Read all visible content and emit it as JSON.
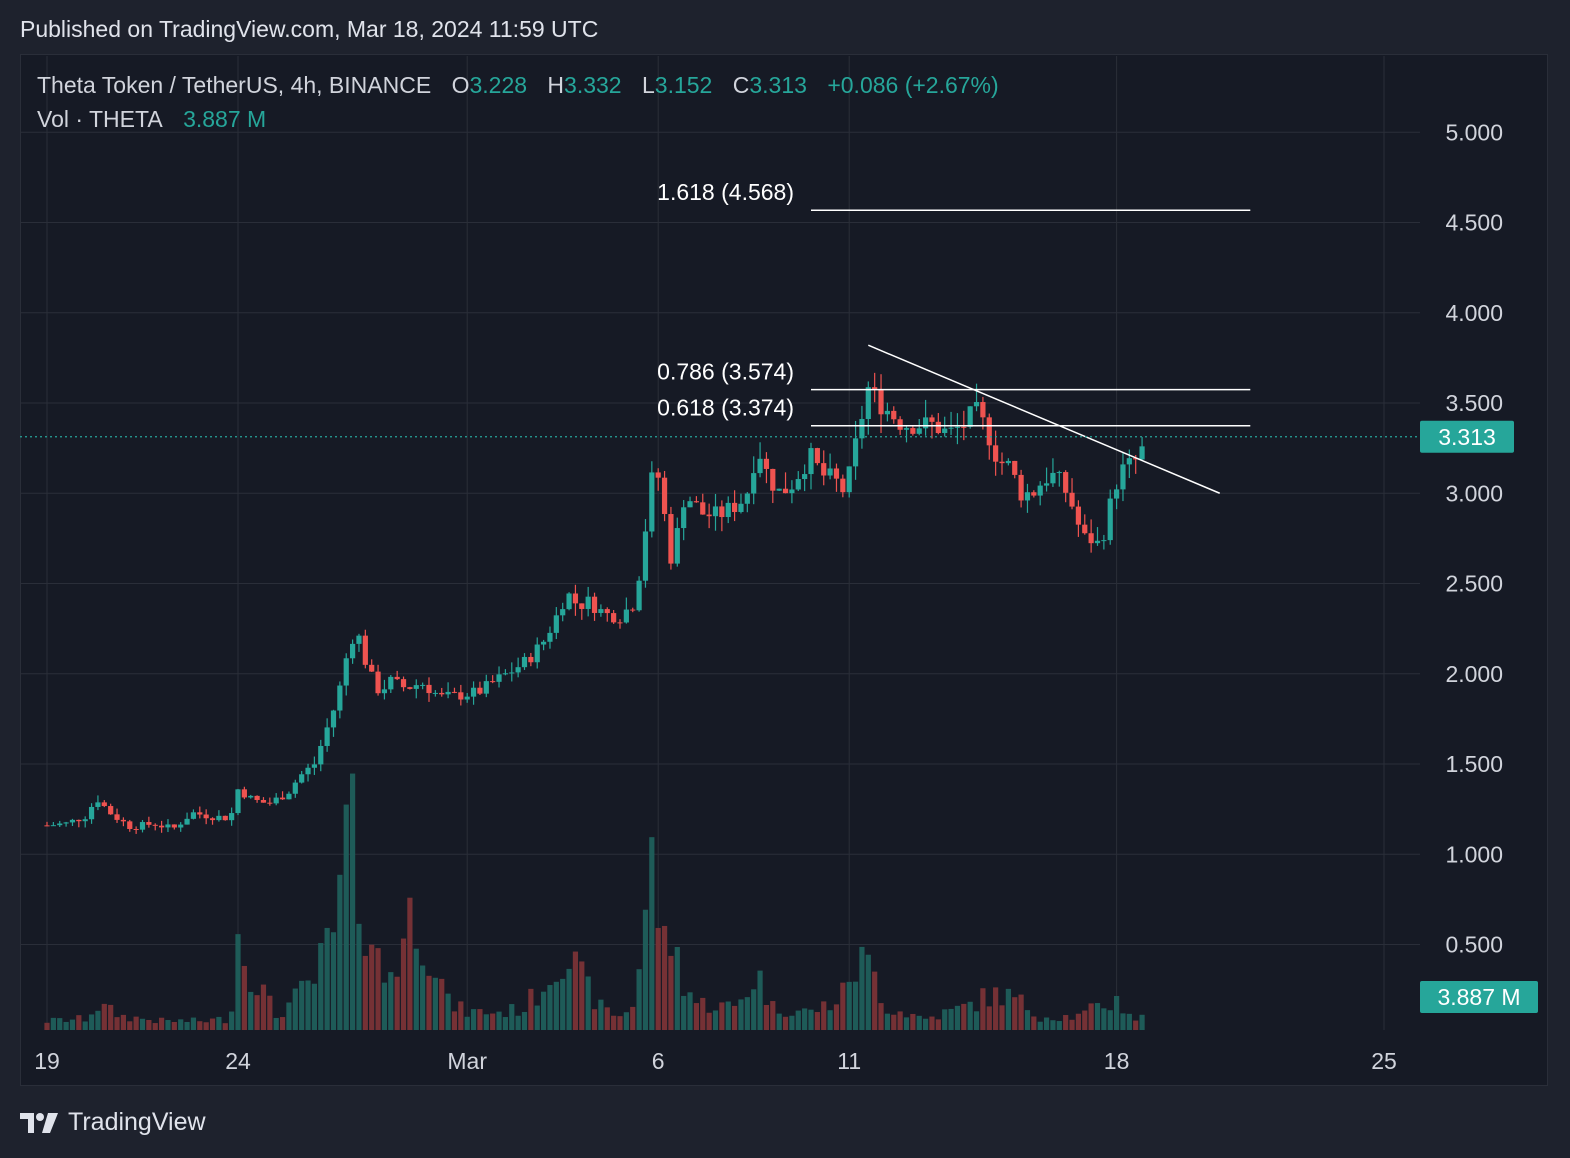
{
  "header": {
    "published": "Published on TradingView.com, Mar 18, 2024 11:59 UTC"
  },
  "legend": {
    "symbol": "Theta Token / TetherUS, 4h, BINANCE",
    "open_label": "O",
    "open": "3.228",
    "high_label": "H",
    "high": "3.332",
    "low_label": "L",
    "low": "3.152",
    "close_label": "C",
    "close": "3.313",
    "change": "+0.086 (+2.67%)",
    "vol_label": "Vol · THETA",
    "vol_value": "3.887 M"
  },
  "brand": {
    "name": "TradingView"
  },
  "colors": {
    "up": "#26a69a",
    "down": "#ef5350",
    "background": "#161a25",
    "grid": "#2a2e39",
    "text": "#d1d4dc"
  },
  "chart_data": {
    "type": "candlestick",
    "title": "Theta Token / TetherUS, 4h, BINANCE",
    "y_axis": {
      "ticks": [
        "5.000",
        "4.500",
        "4.000",
        "3.500",
        "3.000",
        "2.500",
        "2.000",
        "1.500",
        "1.000",
        "0.500"
      ],
      "range": [
        0,
        5.5
      ],
      "position": "right"
    },
    "x_axis": {
      "ticks": [
        {
          "label": "19",
          "day": 0
        },
        {
          "label": "24",
          "day": 5
        },
        {
          "label": "Mar",
          "day": 11
        },
        {
          "label": "6",
          "day": 16
        },
        {
          "label": "11",
          "day": 21
        },
        {
          "label": "18",
          "day": 28
        },
        {
          "label": "25",
          "day": 35
        }
      ]
    },
    "last_price": {
      "label": "3.313",
      "value": 3.313
    },
    "last_volume": {
      "label": "3.887 M"
    },
    "fib_levels": [
      {
        "label": "1.618 (4.568)",
        "value": 4.568
      },
      {
        "label": "0.786 (3.574)",
        "value": 3.574
      },
      {
        "label": "0.618 (3.374)",
        "value": 3.374
      }
    ],
    "fib_range_days": [
      20,
      31.5
    ],
    "trendline": {
      "from": {
        "day": 21.5,
        "price": 3.82
      },
      "to": {
        "day": 30.7,
        "price": 3.0
      }
    },
    "price_path": [
      [
        0,
        1.16
      ],
      [
        0.5,
        1.17
      ],
      [
        1,
        1.21
      ],
      [
        1.3,
        1.31
      ],
      [
        1.7,
        1.22
      ],
      [
        2.2,
        1.15
      ],
      [
        2.8,
        1.17
      ],
      [
        3.3,
        1.14
      ],
      [
        3.8,
        1.23
      ],
      [
        4.3,
        1.21
      ],
      [
        4.8,
        1.2
      ],
      [
        5.0,
        1.36
      ],
      [
        5.4,
        1.3
      ],
      [
        5.8,
        1.28
      ],
      [
        6.3,
        1.34
      ],
      [
        6.6,
        1.43
      ],
      [
        7.0,
        1.5
      ],
      [
        7.3,
        1.68
      ],
      [
        7.6,
        1.86
      ],
      [
        7.9,
        2.15
      ],
      [
        8.1,
        2.25
      ],
      [
        8.4,
        2.02
      ],
      [
        8.7,
        1.9
      ],
      [
        9.0,
        1.96
      ],
      [
        9.4,
        1.92
      ],
      [
        9.8,
        1.95
      ],
      [
        10.3,
        1.87
      ],
      [
        10.8,
        1.88
      ],
      [
        11.3,
        1.9
      ],
      [
        11.8,
        1.97
      ],
      [
        12.2,
        2.02
      ],
      [
        12.6,
        2.08
      ],
      [
        13.0,
        2.18
      ],
      [
        13.3,
        2.3
      ],
      [
        13.6,
        2.45
      ],
      [
        13.9,
        2.38
      ],
      [
        14.2,
        2.4
      ],
      [
        14.6,
        2.33
      ],
      [
        15.0,
        2.32
      ],
      [
        15.4,
        2.4
      ],
      [
        15.6,
        2.7
      ],
      [
        15.9,
        3.18
      ],
      [
        16.1,
        3.0
      ],
      [
        16.3,
        2.62
      ],
      [
        16.5,
        2.78
      ],
      [
        16.7,
        3.0
      ],
      [
        16.9,
        2.95
      ],
      [
        17.2,
        2.88
      ],
      [
        17.6,
        2.88
      ],
      [
        18.0,
        2.93
      ],
      [
        18.3,
        2.98
      ],
      [
        18.6,
        3.26
      ],
      [
        18.9,
        3.08
      ],
      [
        19.2,
        3.0
      ],
      [
        19.5,
        3.05
      ],
      [
        19.8,
        3.15
      ],
      [
        20.0,
        3.2
      ],
      [
        20.3,
        3.1
      ],
      [
        20.6,
        3.08
      ],
      [
        20.9,
        3.0
      ],
      [
        21.1,
        3.2
      ],
      [
        21.3,
        3.4
      ],
      [
        21.5,
        3.58
      ],
      [
        21.8,
        3.5
      ],
      [
        22.1,
        3.44
      ],
      [
        22.4,
        3.38
      ],
      [
        22.8,
        3.38
      ],
      [
        23.2,
        3.38
      ],
      [
        23.6,
        3.33
      ],
      [
        24.0,
        3.38
      ],
      [
        24.3,
        3.46
      ],
      [
        24.6,
        3.35
      ],
      [
        24.9,
        3.18
      ],
      [
        25.2,
        3.15
      ],
      [
        25.5,
        3.0
      ],
      [
        25.8,
        3.0
      ],
      [
        26.1,
        3.08
      ],
      [
        26.4,
        3.1
      ],
      [
        26.7,
        3.0
      ],
      [
        26.9,
        2.9
      ],
      [
        27.1,
        2.75
      ],
      [
        27.3,
        2.75
      ],
      [
        27.5,
        2.72
      ],
      [
        27.7,
        2.8
      ],
      [
        27.9,
        3.0
      ],
      [
        28.1,
        3.12
      ],
      [
        28.3,
        3.15
      ],
      [
        28.5,
        3.18
      ],
      [
        28.6,
        3.2
      ],
      [
        28.8,
        3.31
      ]
    ],
    "volume_path": [
      [
        0,
        0.04
      ],
      [
        1,
        0.05
      ],
      [
        1.3,
        0.11
      ],
      [
        2,
        0.06
      ],
      [
        3,
        0.04
      ],
      [
        4,
        0.04
      ],
      [
        4.8,
        0.05
      ],
      [
        5,
        0.43
      ],
      [
        5.2,
        0.32
      ],
      [
        6,
        0.06
      ],
      [
        6.5,
        0.14
      ],
      [
        7,
        0.22
      ],
      [
        7.3,
        0.35
      ],
      [
        7.6,
        0.45
      ],
      [
        7.9,
        0.97
      ],
      [
        8.1,
        0.68
      ],
      [
        8.4,
        0.48
      ],
      [
        8.8,
        0.22
      ],
      [
        9.2,
        0.33
      ],
      [
        9.6,
        0.55
      ],
      [
        10.0,
        0.38
      ],
      [
        10.5,
        0.12
      ],
      [
        11,
        0.08
      ],
      [
        12,
        0.08
      ],
      [
        12.5,
        0.1
      ],
      [
        13,
        0.2
      ],
      [
        13.5,
        0.37
      ],
      [
        14,
        0.22
      ],
      [
        14.5,
        0.1
      ],
      [
        15,
        0.06
      ],
      [
        15.4,
        0.13
      ],
      [
        15.6,
        0.45
      ],
      [
        15.9,
        0.8
      ],
      [
        16.1,
        0.32
      ],
      [
        16.3,
        0.44
      ],
      [
        16.6,
        0.25
      ],
      [
        17,
        0.12
      ],
      [
        18,
        0.1
      ],
      [
        18.6,
        0.25
      ],
      [
        19,
        0.1
      ],
      [
        20,
        0.08
      ],
      [
        20.8,
        0.14
      ],
      [
        21.0,
        0.25
      ],
      [
        21.3,
        0.3
      ],
      [
        21.6,
        0.27
      ],
      [
        22,
        0.1
      ],
      [
        23,
        0.05
      ],
      [
        24,
        0.1
      ],
      [
        24.5,
        0.14
      ],
      [
        25,
        0.16
      ],
      [
        25.5,
        0.12
      ],
      [
        26,
        0.06
      ],
      [
        27,
        0.06
      ],
      [
        27.5,
        0.1
      ],
      [
        28,
        0.13
      ],
      [
        28.5,
        0.05
      ],
      [
        28.8,
        0.06
      ]
    ]
  }
}
